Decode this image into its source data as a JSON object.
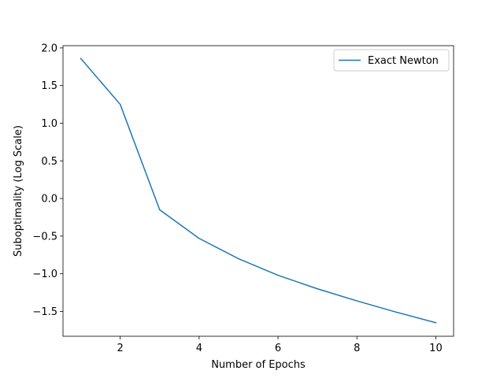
{
  "chart_data": {
    "type": "line",
    "title": "",
    "xlabel": "Number of Epochs",
    "ylabel": "Suboptimality (Log Scale)",
    "xlim": [
      0.55,
      10.45
    ],
    "ylim": [
      -1.83,
      2.03
    ],
    "xticks": [
      2,
      4,
      6,
      8,
      10
    ],
    "xtick_labels": [
      "2",
      "4",
      "6",
      "8",
      "10"
    ],
    "yticks": [
      -1.5,
      -1.0,
      -0.5,
      0.0,
      0.5,
      1.0,
      1.5,
      2.0
    ],
    "ytick_labels": [
      "−1.5",
      "−1.0",
      "−0.5",
      "0.0",
      "0.5",
      "1.0",
      "1.5",
      "2.0"
    ],
    "grid": false,
    "legend_position": "upper right",
    "series": [
      {
        "name": "Exact Newton",
        "color": "#1f77b4",
        "x": [
          1,
          2,
          3,
          4,
          5,
          6,
          7,
          8,
          9,
          10
        ],
        "y": [
          1.86,
          1.25,
          -0.15,
          -0.53,
          -0.8,
          -1.02,
          -1.2,
          -1.36,
          -1.51,
          -1.65
        ]
      }
    ]
  }
}
